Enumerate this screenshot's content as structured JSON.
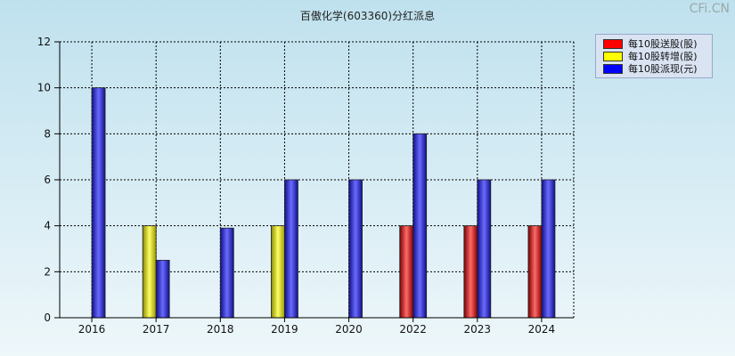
{
  "title": "百傲化学(603360)分红派息",
  "watermark": "CFi.CN",
  "colors": {
    "red": "#e02020",
    "yellow": "#ffff00",
    "blue": "#3030e0"
  },
  "chart_data": {
    "type": "bar",
    "title": "百傲化学(603360)分红派息",
    "categories": [
      "2016",
      "2017",
      "2018",
      "2019",
      "2020",
      "2022",
      "2023",
      "2024"
    ],
    "series": [
      {
        "name": "每10股送股(股)",
        "color": "red",
        "values": [
          0,
          0,
          0,
          0,
          0,
          4,
          4,
          4
        ]
      },
      {
        "name": "每10股转增(股)",
        "color": "yellow",
        "values": [
          0,
          4,
          0,
          4,
          0,
          0,
          0,
          0
        ]
      },
      {
        "name": "每10股派现(元)",
        "color": "blue",
        "values": [
          10,
          2.5,
          3.9,
          6,
          6,
          8,
          6,
          6
        ]
      }
    ],
    "ylim": [
      0,
      12
    ],
    "yticks": [
      0,
      2,
      4,
      6,
      8,
      10,
      12
    ],
    "grid": true,
    "legend_position": "top-right"
  }
}
